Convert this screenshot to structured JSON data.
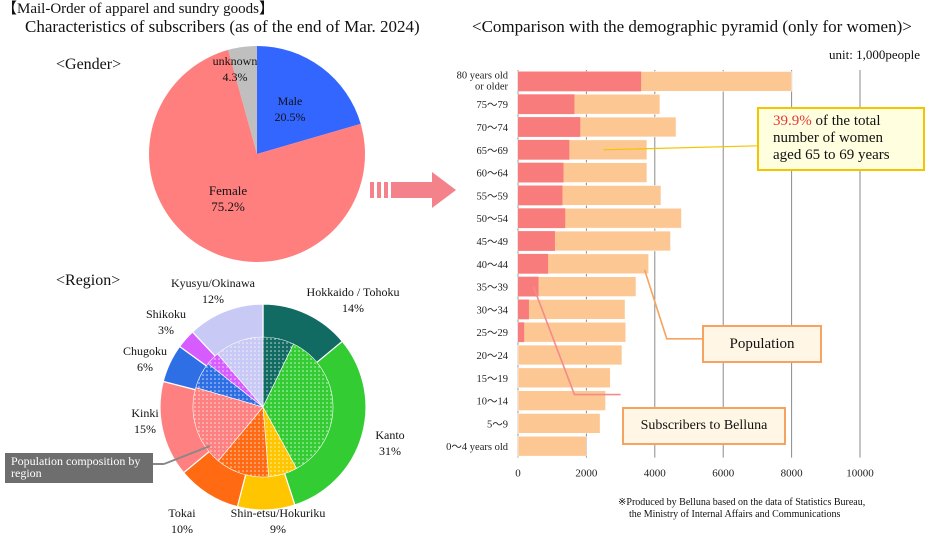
{
  "header": {
    "title": "【Mail-Order of apparel and sundry goods】",
    "subtitle": "Characteristics of subscribers (as of the end of Mar. 2024)",
    "right_title": "<Comparison with the demographic pyramid (only for women)>",
    "unit": "unit: 1,000people"
  },
  "gender": {
    "heading": "<Gender>",
    "labels": {
      "male_name": "Male",
      "male_value": "20.5%",
      "female_name": "Female",
      "female_value": "75.2%",
      "unknown_name": "unknown",
      "unknown_value": "4.3%"
    }
  },
  "region": {
    "heading": "<Region>",
    "labels": {
      "hokkaido_name": "Hokkaido / Tohoku",
      "hokkaido_value": "14%",
      "kanto_name": "Kanto",
      "kanto_value": "31%",
      "shinetsu_name": "Shin-etsu/Hokuriku",
      "shinetsu_value": "9%",
      "tokai_name": "Tokai",
      "tokai_value": "10%",
      "kinki_name": "Kinki",
      "kinki_value": "15%",
      "chugoku_name": "Chugoku",
      "chugoku_value": "6%",
      "shikoku_name": "Shikoku",
      "shikoku_value": "3%",
      "kyusyu_name": "Kyusyu/Okinawa",
      "kyusyu_value": "12%"
    },
    "legend_box": "Population composition by region"
  },
  "callouts": {
    "highlight_pct": "39.9%",
    "highlight_rest_1": " of the total",
    "highlight_line_2": "number of women",
    "highlight_line_3": "aged 65 to 69 years",
    "population": "Population",
    "subscribers": "Subscribers to Belluna"
  },
  "footnote": {
    "line1": "※Produced by Belluna based on the data of Statistics Bureau,",
    "line2": "the Ministry of Internal Affairs and Communications"
  },
  "colors": {
    "male": "#3366FF",
    "female": "#FF7F7F",
    "unknown": "#BFBFBF",
    "population_bar": "#FCC792",
    "subscriber_bar": "#F97C7C",
    "callout_border_yellow": "#F2C500",
    "callout_border_orange": "#F4A460",
    "arrow": "#F4828A",
    "hokkaido": "#126B63",
    "kanto": "#33CC33",
    "shinetsu": "#FFC600",
    "tokai": "#FF6A13",
    "kinki": "#FF8080",
    "chugoku": "#2E6FE6",
    "shikoku": "#D65CFF",
    "kyusyu": "#C9C9F5"
  },
  "chart_data": [
    {
      "type": "pie",
      "title": "<Gender>",
      "categories": [
        "Male",
        "Female",
        "unknown"
      ],
      "values": [
        20.5,
        75.2,
        4.3
      ]
    },
    {
      "type": "pie",
      "title": "<Region>",
      "categories": [
        "Hokkaido / Tohoku",
        "Kanto",
        "Shin-etsu/Hokuriku",
        "Tokai",
        "Kinki",
        "Chugoku",
        "Shikoku",
        "Kyusyu/Okinawa"
      ],
      "values": [
        14,
        31,
        9,
        10,
        15,
        6,
        3,
        12
      ],
      "series": [
        {
          "name": "",
          "values": [
            14,
            31,
            9,
            10,
            15,
            6,
            3,
            12
          ]
        },
        {
          "name": "Population composition by region",
          "values": [
            7,
            34,
            6.5,
            12,
            18,
            6,
            3,
            11
          ]
        }
      ]
    },
    {
      "type": "bar",
      "orientation": "horizontal",
      "title": "<Comparison with the demographic pyramid (only for women)>",
      "categories": [
        "80 years old or older",
        "75～79",
        "70～74",
        "65～69",
        "60～64",
        "55～59",
        "50～54",
        "45～49",
        "40～44",
        "35～39",
        "30～34",
        "25～29",
        "20～24",
        "15～19",
        "10～14",
        "5～9",
        "0～4 years old"
      ],
      "series": [
        {
          "name": "Population",
          "values": [
            8000,
            4150,
            4620,
            3770,
            3770,
            4180,
            4780,
            4460,
            3820,
            3450,
            3130,
            3150,
            3040,
            2700,
            2560,
            2400,
            2000
          ]
        },
        {
          "name": "Subscribers to Belluna",
          "values": [
            3600,
            1650,
            1820,
            1500,
            1330,
            1300,
            1380,
            1080,
            880,
            600,
            320,
            180,
            0,
            0,
            0,
            0,
            0
          ]
        }
      ],
      "xlim": [
        0,
        10000
      ],
      "xticks": [
        "0",
        "2000",
        "4000",
        "6000",
        "8000",
        "10000"
      ],
      "grid": true
    }
  ]
}
